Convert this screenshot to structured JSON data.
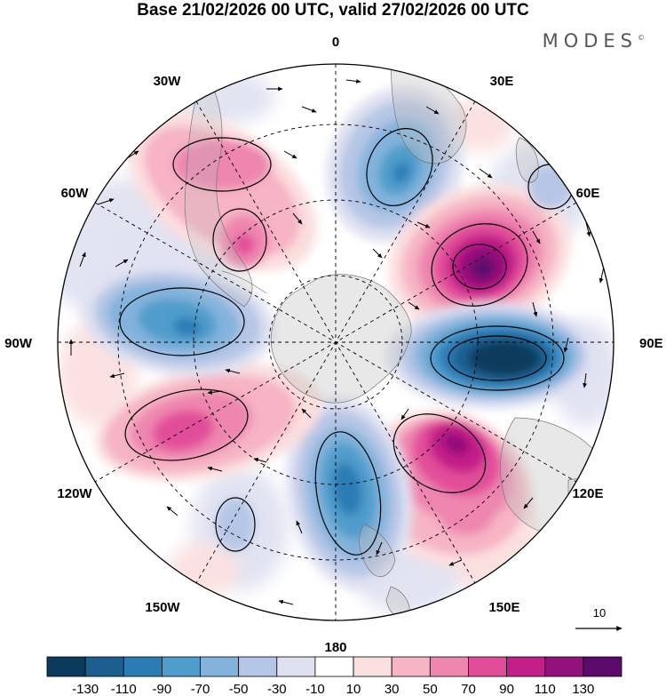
{
  "title": "Base 21/02/2026 00 UTC, valid 27/02/2026 00 UTC",
  "brand": "MODES",
  "brand_mark": "©",
  "longitude_labels": {
    "top": "0",
    "e30": "30E",
    "e60": "60E",
    "e90": "90E",
    "e120": "120E",
    "e150": "150E",
    "bottom": "180",
    "w150": "150W",
    "w120": "120W",
    "w90": "90W",
    "w60": "60W",
    "w30": "30W"
  },
  "vector_legend": {
    "label": "10"
  },
  "colorbar": {
    "colors": [
      "#0b3b5c",
      "#1c5f8f",
      "#2b7bb5",
      "#4f9dcc",
      "#83b3dc",
      "#b6c6e6",
      "#dfe1f1",
      "#ffffff",
      "#fbdede",
      "#f6b4c4",
      "#ee86b0",
      "#e24d9a",
      "#c31f88",
      "#93117a",
      "#5c0a6c"
    ],
    "tick_labels": [
      "-130",
      "-110",
      "-90",
      "-70",
      "-50",
      "-30",
      "-10",
      "10",
      "30",
      "50",
      "70",
      "90",
      "110",
      "130"
    ]
  }
}
